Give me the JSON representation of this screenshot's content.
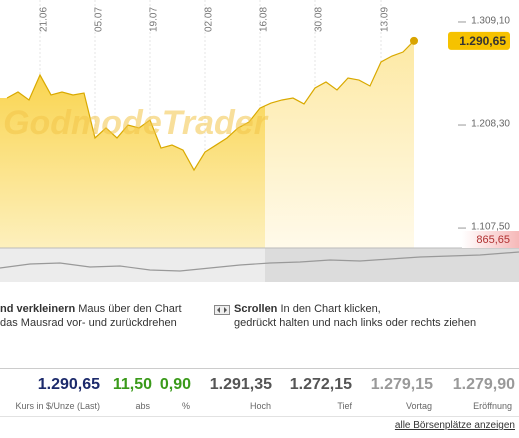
{
  "chart_data": {
    "type": "area",
    "watermark": "GodmodeTrader",
    "categories": [
      null,
      null,
      null,
      "21.06",
      null,
      null,
      null,
      null,
      "05.07",
      null,
      null,
      null,
      null,
      "19.07",
      null,
      null,
      null,
      null,
      "02.08",
      null,
      null,
      null,
      null,
      "16.08",
      null,
      null,
      null,
      null,
      "30.08",
      null,
      null,
      null,
      null,
      null,
      "13.09",
      null,
      null,
      null
    ],
    "values": [
      1234.7,
      1240.6,
      1232.8,
      1257.2,
      1237.7,
      1240.6,
      1237.7,
      1239.6,
      1195.6,
      1205.4,
      1195.6,
      1208.3,
      1205.4,
      1213.2,
      1185.8,
      1188.7,
      1183.8,
      1164.3,
      1181.9,
      1188.7,
      1195.6,
      1205.4,
      1211.2,
      1224.9,
      1229.8,
      1232.8,
      1234.7,
      1228.9,
      1244.5,
      1250.4,
      1242.6,
      1254.3,
      1252.3,
      1246.5,
      1270.0,
      1275.8,
      1279.7,
      1290.65
    ],
    "value_labels": [
      null,
      null,
      null,
      null,
      null,
      null,
      null,
      null,
      null,
      null,
      null,
      null,
      null,
      null,
      null,
      null,
      null,
      null,
      null,
      null,
      null,
      null,
      null,
      null,
      null,
      null,
      null,
      null,
      null,
      null,
      null,
      null,
      null,
      null,
      null,
      null,
      null,
      "1.290,65"
    ],
    "color": "#d9a900",
    "ylim": [
      1088,
      1330.6
    ],
    "yticks": [
      {
        "value": 1309.1,
        "label": "1.309,10"
      },
      {
        "value": 1208.3,
        "label": "1.208,30"
      },
      {
        "value": 1107.5,
        "label": "1.107,50"
      }
    ],
    "marker_label": "865,65",
    "grid": true
  },
  "help": {
    "zoom": {
      "title": "nd verkleinern",
      "lines": [
        "Maus über den Chart",
        "das Mausrad vor- und zurückdrehen"
      ]
    },
    "scroll": {
      "title": "Scrollen",
      "lines": [
        "In den Chart klicken,",
        "gedrückt halten und nach links oder rechts ziehen"
      ]
    }
  },
  "quote": [
    {
      "value": "1.290,65",
      "label": "Kurs in $/Unze (Last)"
    },
    {
      "value": "11,50",
      "label": "abs"
    },
    {
      "value": "0,90",
      "label": "%"
    },
    {
      "value": "1.291,35",
      "label": "Hoch"
    },
    {
      "value": "1.272,15",
      "label": "Tief"
    },
    {
      "value": "1.279,15",
      "label": "Vortag"
    },
    {
      "value": "1.279,90",
      "label": "Eröffnung"
    }
  ],
  "link": "alle Börsenplätze anzeigen"
}
